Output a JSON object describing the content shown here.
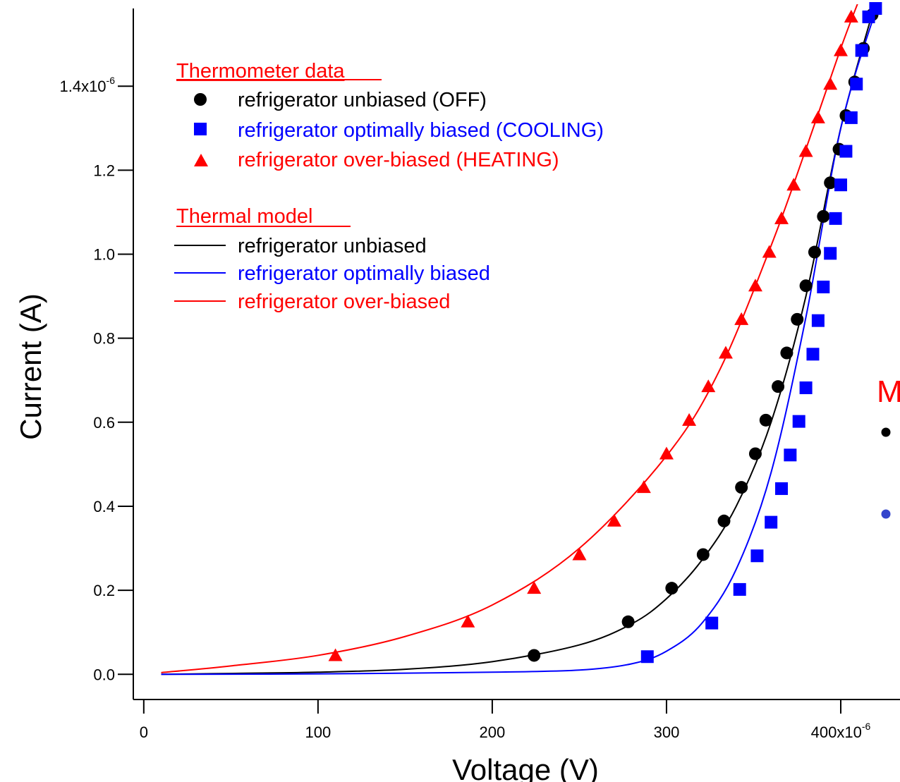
{
  "chart_data": {
    "type": "scatter",
    "title": "",
    "xlabel": "Voltage (V)",
    "ylabel": "Current (A)",
    "xlim": [
      -6,
      434
    ],
    "ylim": [
      -0.06,
      1.585
    ],
    "x_ticks": [
      {
        "value": 0,
        "label": "0"
      },
      {
        "value": 100,
        "label": "100"
      },
      {
        "value": 200,
        "label": "200"
      },
      {
        "value": 300,
        "label": "300"
      },
      {
        "value": 400,
        "label": "400x10",
        "exponent": "-6"
      }
    ],
    "y_ticks": [
      {
        "value": 0.0,
        "label": "0.0"
      },
      {
        "value": 0.2,
        "label": "0.2"
      },
      {
        "value": 0.4,
        "label": "0.4"
      },
      {
        "value": 0.6,
        "label": "0.6"
      },
      {
        "value": 0.8,
        "label": "0.8"
      },
      {
        "value": 1.0,
        "label": "1.0"
      },
      {
        "value": 1.2,
        "label": "1.2"
      },
      {
        "value": 1.4,
        "label": "1.4x10",
        "exponent": "-6"
      }
    ],
    "legend": {
      "placement": "top-left",
      "data_heading": "Thermometer data",
      "model_heading": "Thermal model",
      "data_entries": [
        {
          "label": "refrigerator unbiased (OFF)",
          "marker": "circle",
          "color": "#000000"
        },
        {
          "label": "refrigerator optimally biased (COOLING)",
          "marker": "square",
          "color": "#0000ff"
        },
        {
          "label": "refrigerator over-biased (HEATING)",
          "marker": "triangle",
          "color": "#ff0000"
        }
      ],
      "model_entries": [
        {
          "label": "refrigerator unbiased",
          "color": "#000000"
        },
        {
          "label": "refrigerator optimally biased",
          "color": "#0000ff"
        },
        {
          "label": "refrigerator over-biased",
          "color": "#ff0000"
        }
      ]
    },
    "series": [
      {
        "marker": "circle",
        "color": "#000000",
        "x": [
          224,
          278,
          303,
          321,
          333,
          343,
          351,
          357,
          364,
          369,
          375,
          380,
          385,
          390,
          394,
          399,
          403,
          408,
          413,
          418
        ],
        "y": [
          0.045,
          0.125,
          0.205,
          0.285,
          0.365,
          0.445,
          0.525,
          0.605,
          0.685,
          0.765,
          0.845,
          0.925,
          1.005,
          1.09,
          1.17,
          1.25,
          1.33,
          1.41,
          1.49,
          1.57
        ]
      },
      {
        "marker": "square",
        "color": "#0000ff",
        "x": [
          289,
          326,
          342,
          352,
          360,
          366,
          371,
          376,
          380,
          384,
          387,
          390,
          394,
          397,
          400,
          403,
          406,
          409,
          412,
          416,
          420
        ],
        "y": [
          0.042,
          0.122,
          0.202,
          0.282,
          0.362,
          0.442,
          0.522,
          0.602,
          0.682,
          0.762,
          0.842,
          0.922,
          1.002,
          1.085,
          1.165,
          1.245,
          1.325,
          1.405,
          1.485,
          1.565,
          1.585
        ]
      },
      {
        "marker": "triangle",
        "color": "#ff0000",
        "x": [
          110,
          186,
          224,
          250,
          270,
          287,
          300,
          313,
          324,
          334,
          343,
          351,
          359,
          366,
          373,
          380,
          387,
          394,
          400,
          406
        ],
        "y": [
          0.045,
          0.125,
          0.205,
          0.285,
          0.365,
          0.445,
          0.525,
          0.605,
          0.685,
          0.765,
          0.845,
          0.925,
          1.005,
          1.085,
          1.165,
          1.245,
          1.325,
          1.405,
          1.485,
          1.565
        ]
      },
      {
        "line": true,
        "color": "#000000",
        "x": [
          10,
          50,
          100,
          150,
          200,
          250,
          280,
          300,
          320,
          340,
          360,
          380,
          400,
          420
        ],
        "y": [
          0.0,
          0.002,
          0.005,
          0.012,
          0.03,
          0.07,
          0.12,
          0.18,
          0.27,
          0.4,
          0.6,
          0.9,
          1.3,
          1.6
        ]
      },
      {
        "line": true,
        "color": "#0000ff",
        "x": [
          10,
          100,
          200,
          250,
          280,
          300,
          320,
          340,
          360,
          380,
          400,
          420
        ],
        "y": [
          0.0,
          0.001,
          0.005,
          0.01,
          0.025,
          0.055,
          0.12,
          0.25,
          0.48,
          0.85,
          1.3,
          1.58
        ]
      },
      {
        "line": true,
        "color": "#ff0000",
        "x": [
          10,
          50,
          100,
          150,
          200,
          250,
          300,
          330,
          360,
          380,
          400,
          410
        ],
        "y": [
          0.004,
          0.02,
          0.045,
          0.09,
          0.165,
          0.3,
          0.52,
          0.72,
          1.02,
          1.25,
          1.49,
          1.6
        ]
      }
    ],
    "cut_off_legend": {
      "text": "M",
      "markers": [
        {
          "shape": "circle",
          "color": "#000000"
        },
        {
          "shape": "circle",
          "color": "#3344cc"
        }
      ]
    }
  }
}
